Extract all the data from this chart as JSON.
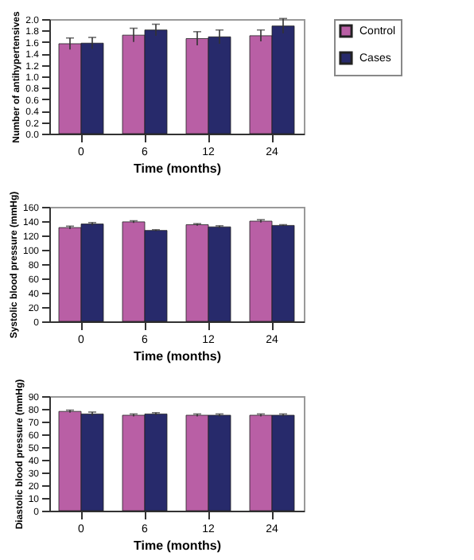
{
  "chart_data": [
    {
      "type": "bar",
      "xlabel": "Time (months)",
      "ylabel": "Number of antihypertensives",
      "categories": [
        "0",
        "6",
        "12",
        "24"
      ],
      "ylim": [
        0,
        2.0
      ],
      "yticks": [
        {
          "value": 0,
          "label": "0.0"
        },
        {
          "value": 0.2,
          "label": "0.2"
        },
        {
          "value": 0.4,
          "label": "0.4"
        },
        {
          "value": 0.6,
          "label": "0.6"
        },
        {
          "value": 0.8,
          "label": "0.8"
        },
        {
          "value": 1.0,
          "label": "1.0"
        },
        {
          "value": 1.2,
          "label": "1.2"
        },
        {
          "value": 1.4,
          "label": "1.4"
        },
        {
          "value": 1.6,
          "label": "1.6"
        },
        {
          "value": 1.8,
          "label": "1.8"
        },
        {
          "value": 2.0,
          "label": "2.0"
        }
      ],
      "legend": "right",
      "grid": false,
      "series": [
        {
          "name": "Control",
          "color": "#b95fa5",
          "values": [
            1.57,
            1.72,
            1.66,
            1.71
          ],
          "errors": [
            0.1,
            0.12,
            0.12,
            0.1
          ]
        },
        {
          "name": "Cases",
          "color": "#272a6b",
          "values": [
            1.58,
            1.81,
            1.69,
            1.88
          ],
          "errors": [
            0.1,
            0.1,
            0.12,
            0.13
          ]
        }
      ]
    },
    {
      "type": "bar",
      "xlabel": "Time (months)",
      "ylabel": "Systolic blood pressure (mmHg)",
      "categories": [
        "0",
        "6",
        "12",
        "24"
      ],
      "ylim": [
        0,
        160
      ],
      "yticks": [
        0,
        20,
        40,
        60,
        80,
        100,
        120,
        140,
        160
      ],
      "legend": "right",
      "grid": false,
      "series": [
        {
          "name": "Control",
          "color": "#b95fa5",
          "values": [
            131,
            139,
            135,
            140
          ],
          "errors": [
            2,
            1.5,
            1.5,
            2
          ]
        },
        {
          "name": "Cases",
          "color": "#272a6b",
          "values": [
            136,
            127,
            132,
            134
          ],
          "errors": [
            2,
            1,
            1.5,
            1
          ]
        }
      ]
    },
    {
      "type": "bar",
      "xlabel": "Time (months)",
      "ylabel": "Diastolic blood pressure (mmHg)",
      "categories": [
        "0",
        "6",
        "12",
        "24"
      ],
      "ylim": [
        0,
        90
      ],
      "yticks": [
        0,
        10,
        20,
        30,
        40,
        50,
        60,
        70,
        80,
        90
      ],
      "legend": "right",
      "grid": false,
      "series": [
        {
          "name": "Control",
          "color": "#b95fa5",
          "values": [
            78,
            75,
            75,
            75
          ],
          "errors": [
            1,
            1,
            1,
            1
          ]
        },
        {
          "name": "Cases",
          "color": "#272a6b",
          "values": [
            76,
            76,
            75,
            75
          ],
          "errors": [
            1.5,
            1,
            1,
            1
          ]
        }
      ]
    }
  ]
}
